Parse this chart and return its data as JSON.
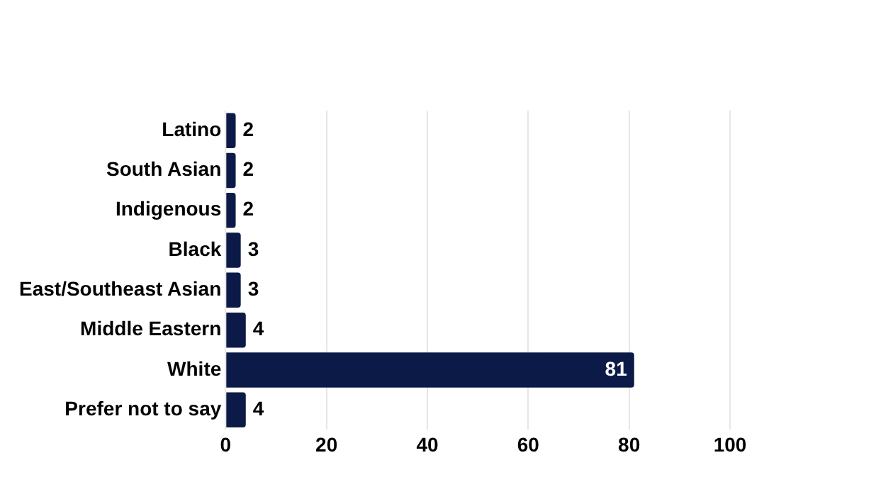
{
  "chart_data": {
    "type": "bar",
    "orientation": "horizontal",
    "categories": [
      "Latino",
      "South Asian",
      "Indigenous",
      "Black",
      "East/Southeast Asian",
      "Middle Eastern",
      "White",
      "Prefer not to say"
    ],
    "values": [
      2,
      2,
      2,
      3,
      3,
      4,
      81,
      4
    ],
    "color": "#0c1a48",
    "xlim": [
      0,
      100
    ],
    "xticks": [
      0,
      20,
      40,
      60,
      80,
      100
    ],
    "grid": "x",
    "data_labels": true,
    "legend": false
  }
}
